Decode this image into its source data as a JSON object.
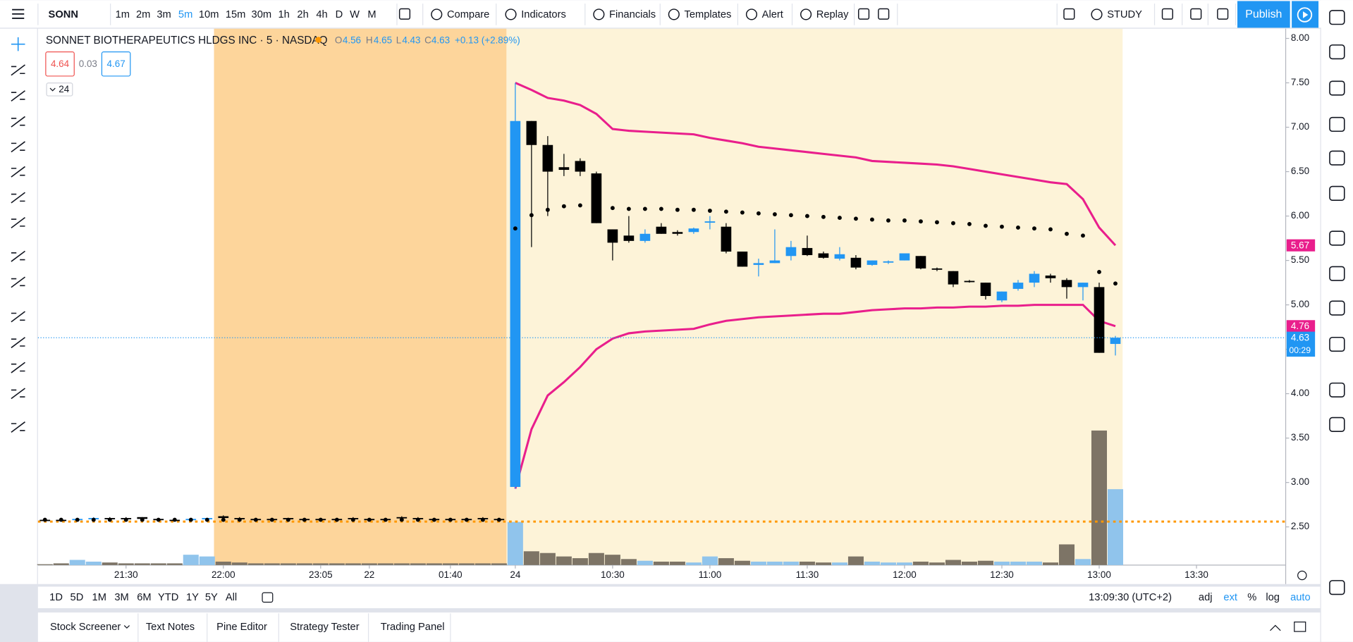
{
  "toolbar": {
    "symbol": "SONN",
    "intervals": [
      "1m",
      "2m",
      "3m",
      "5m",
      "10m",
      "15m",
      "30m",
      "1h",
      "2h",
      "4h",
      "D",
      "W",
      "M"
    ],
    "buttons": [
      "Compare",
      "Indicators",
      "Financials",
      "Templates",
      "Alert",
      "Replay",
      "STUDY"
    ],
    "publish": "Publish"
  },
  "chart_data": {
    "type": "candlestick",
    "title": "SONNET BIOTHERAPEUTICS HLDGS INC · 5 · NASDAQ",
    "legend": {
      "ohlc_labels": [
        "O",
        "H",
        "L",
        "C"
      ],
      "change": "+0.13 (+2.89%)"
    },
    "bid": 4.64,
    "spread": 0.03,
    "ask": 4.67,
    "collapse": 24,
    "countdown": "00:29",
    "x": [
      0,
      1,
      2,
      3,
      4,
      5,
      6,
      7,
      8,
      9,
      10,
      11,
      12,
      13,
      14,
      15,
      16,
      17,
      18,
      19,
      20,
      21,
      22,
      23,
      24,
      25,
      26,
      27,
      28,
      29,
      30,
      31,
      32,
      33,
      34,
      35,
      36,
      37,
      38,
      39,
      40,
      41,
      42,
      43,
      44,
      45,
      46,
      47,
      48,
      49,
      50,
      51,
      52,
      53,
      54,
      55,
      56,
      57,
      58,
      59,
      60,
      61,
      62,
      63,
      64,
      65,
      66
    ],
    "open": [
      2.58,
      2.58,
      2.58,
      2.59,
      2.6,
      2.6,
      2.61,
      2.59,
      2.58,
      2.58,
      2.59,
      2.62,
      2.6,
      2.59,
      2.59,
      2.6,
      2.59,
      2.59,
      2.59,
      2.6,
      2.59,
      2.59,
      2.61,
      2.6,
      2.59,
      2.59,
      2.59,
      2.6,
      2.59,
      2.95,
      7.07,
      6.8,
      6.55,
      6.62,
      6.48,
      5.85,
      5.78,
      5.72,
      5.88,
      5.82,
      5.82,
      5.93,
      5.88,
      5.6,
      5.45,
      5.47,
      5.55,
      5.64,
      5.58,
      5.52,
      5.53,
      5.45,
      5.48,
      5.5,
      5.55,
      5.41,
      5.38,
      5.27,
      5.25,
      5.05,
      5.18,
      5.25,
      5.33,
      5.28,
      5.2,
      5.2,
      4.56
    ],
    "high": [
      2.59,
      2.59,
      2.6,
      2.61,
      2.61,
      2.61,
      2.61,
      2.59,
      2.59,
      2.59,
      2.6,
      2.63,
      2.61,
      2.6,
      2.6,
      2.6,
      2.6,
      2.6,
      2.6,
      2.61,
      2.6,
      2.6,
      2.62,
      2.61,
      2.6,
      2.6,
      2.6,
      2.61,
      2.6,
      7.5,
      7.07,
      6.9,
      6.7,
      6.65,
      6.5,
      5.85,
      6.0,
      5.85,
      5.92,
      5.84,
      5.87,
      6.0,
      5.92,
      5.6,
      5.52,
      5.85,
      5.72,
      5.78,
      5.6,
      5.65,
      5.56,
      5.5,
      5.5,
      5.58,
      5.55,
      5.42,
      5.38,
      5.28,
      5.25,
      5.15,
      5.28,
      5.38,
      5.35,
      5.3,
      5.25,
      5.25,
      4.65
    ],
    "low": [
      2.57,
      2.57,
      2.57,
      2.58,
      2.59,
      2.59,
      2.59,
      2.57,
      2.57,
      2.57,
      2.58,
      2.59,
      2.58,
      2.58,
      2.58,
      2.59,
      2.58,
      2.58,
      2.58,
      2.59,
      2.58,
      2.58,
      2.59,
      2.59,
      2.58,
      2.58,
      2.58,
      2.59,
      2.58,
      2.93,
      5.65,
      6.0,
      6.45,
      6.45,
      5.92,
      5.5,
      5.7,
      5.7,
      5.8,
      5.78,
      5.8,
      5.85,
      5.58,
      5.43,
      5.32,
      5.47,
      5.5,
      5.55,
      5.52,
      5.5,
      5.4,
      5.44,
      5.46,
      5.5,
      5.4,
      5.38,
      5.2,
      5.25,
      5.06,
      5.03,
      5.16,
      5.2,
      5.25,
      5.07,
      5.05,
      4.46,
      4.43
    ],
    "close": [
      2.58,
      2.58,
      2.59,
      2.6,
      2.59,
      2.59,
      2.59,
      2.58,
      2.58,
      2.59,
      2.6,
      2.6,
      2.59,
      2.59,
      2.59,
      2.59,
      2.59,
      2.59,
      2.59,
      2.6,
      2.59,
      2.59,
      2.6,
      2.6,
      2.59,
      2.59,
      2.59,
      2.6,
      2.59,
      7.07,
      6.8,
      6.5,
      6.52,
      6.5,
      5.92,
      5.7,
      5.72,
      5.8,
      5.8,
      5.8,
      5.86,
      5.94,
      5.6,
      5.43,
      5.47,
      5.5,
      5.65,
      5.56,
      5.53,
      5.57,
      5.42,
      5.5,
      5.49,
      5.58,
      5.41,
      5.4,
      5.23,
      5.26,
      5.1,
      5.15,
      5.25,
      5.35,
      5.3,
      5.2,
      5.25,
      4.46,
      4.63
    ],
    "volume": [
      1,
      2,
      6,
      4,
      3,
      2,
      2,
      2,
      2,
      12,
      10,
      4,
      3,
      2,
      2,
      2,
      2,
      2,
      2,
      2,
      2,
      2,
      2,
      2,
      2,
      2,
      2,
      2,
      2,
      50,
      16,
      14,
      10,
      8,
      14,
      12,
      7,
      5,
      4,
      4,
      3,
      10,
      8,
      5,
      4,
      4,
      4,
      4,
      3,
      3,
      10,
      4,
      3,
      3,
      4,
      3,
      6,
      4,
      5,
      4,
      4,
      4,
      3,
      24,
      7,
      156,
      88
    ],
    "colors": {
      "up": "#2196f3",
      "down": "#000000"
    },
    "volume_colors": {
      "up": "#90c4ec",
      "down": "#7d7466"
    },
    "dots": {
      "color": "#000000",
      "values": [
        2.58,
        2.58,
        2.58,
        2.58,
        2.58,
        2.58,
        2.58,
        2.58,
        2.58,
        2.58,
        2.58,
        2.58,
        2.58,
        2.58,
        2.58,
        2.58,
        2.58,
        2.58,
        2.58,
        2.58,
        2.58,
        2.58,
        2.58,
        2.58,
        2.58,
        2.58,
        2.58,
        2.58,
        2.58,
        5.86,
        6.01,
        6.07,
        6.11,
        6.12,
        6.1,
        6.09,
        6.08,
        6.08,
        6.08,
        6.07,
        6.07,
        6.06,
        6.05,
        6.04,
        6.03,
        6.02,
        6.01,
        6.0,
        5.99,
        5.98,
        5.97,
        5.96,
        5.95,
        5.95,
        5.94,
        5.93,
        5.92,
        5.91,
        5.89,
        5.88,
        5.87,
        5.86,
        5.85,
        5.8,
        5.78,
        5.37,
        5.24
      ]
    },
    "upper_band": {
      "color": "#e91e8c",
      "values": [
        null,
        null,
        null,
        null,
        null,
        null,
        null,
        null,
        null,
        null,
        null,
        null,
        null,
        null,
        null,
        null,
        null,
        null,
        null,
        null,
        null,
        null,
        null,
        null,
        null,
        null,
        null,
        null,
        null,
        7.5,
        7.42,
        7.33,
        7.3,
        7.25,
        7.15,
        6.98,
        6.96,
        6.95,
        6.94,
        6.93,
        6.92,
        6.88,
        6.85,
        6.82,
        6.78,
        6.76,
        6.74,
        6.72,
        6.7,
        6.68,
        6.66,
        6.62,
        6.61,
        6.6,
        6.59,
        6.58,
        6.56,
        6.53,
        6.5,
        6.47,
        6.44,
        6.41,
        6.38,
        6.36,
        6.19,
        5.87,
        5.67
      ]
    },
    "lower_band": {
      "color": "#e91e8c",
      "values": [
        null,
        null,
        null,
        null,
        null,
        null,
        null,
        null,
        null,
        null,
        null,
        null,
        null,
        null,
        null,
        null,
        null,
        null,
        null,
        null,
        null,
        null,
        null,
        null,
        null,
        null,
        null,
        null,
        null,
        2.93,
        3.6,
        3.98,
        4.13,
        4.3,
        4.5,
        4.62,
        4.68,
        4.7,
        4.71,
        4.72,
        4.73,
        4.78,
        4.82,
        4.84,
        4.86,
        4.87,
        4.88,
        4.89,
        4.9,
        4.9,
        4.92,
        4.94,
        4.95,
        4.96,
        4.96,
        4.97,
        4.97,
        4.98,
        4.98,
        4.99,
        4.99,
        5.0,
        5.0,
        5.0,
        5.0,
        4.82,
        4.76
      ]
    },
    "hline": {
      "value": 2.56,
      "color": "#ff9800"
    },
    "last_price_color": "#2196f3",
    "ylim": [
      2.07,
      8.12
    ],
    "yticks": [
      {
        "value": 2.5,
        "label": "2.50"
      },
      {
        "value": 3,
        "label": "3.00"
      },
      {
        "value": 3.5,
        "label": "3.50"
      },
      {
        "value": 4,
        "label": "4.00"
      },
      {
        "value": 4.5,
        "label": "4.50"
      },
      {
        "value": 5,
        "label": "5.00"
      },
      {
        "value": 5.5,
        "label": "5.50"
      },
      {
        "value": 6,
        "label": "6.00"
      },
      {
        "value": 6.5,
        "label": "6.50"
      },
      {
        "value": 7,
        "label": "7.00"
      },
      {
        "value": 7.5,
        "label": "7.50"
      },
      {
        "value": 8,
        "label": "8.00"
      }
    ],
    "xlim": [
      -0.43,
      76.5
    ],
    "xticks": [
      {
        "value": 5,
        "label": "21:30"
      },
      {
        "value": 11,
        "label": "22:00"
      },
      {
        "value": 17,
        "label": "23:05"
      },
      {
        "value": 20,
        "label": "22"
      },
      {
        "value": 25,
        "label": "01:40"
      },
      {
        "value": 29,
        "label": "24"
      },
      {
        "value": 35,
        "label": "10:30"
      },
      {
        "value": 41,
        "label": "11:00"
      },
      {
        "value": 47,
        "label": "11:30"
      },
      {
        "value": 53,
        "label": "12:00"
      },
      {
        "value": 59,
        "label": "12:30"
      },
      {
        "value": 65,
        "label": "13:00"
      },
      {
        "value": 71,
        "label": "13:30"
      }
    ],
    "grid": false
  },
  "bottom": {
    "ranges": [
      "1D",
      "5D",
      "1M",
      "3M",
      "6M",
      "YTD",
      "1Y",
      "5Y",
      "All"
    ],
    "clock": "13:09:30 (UTC+2)",
    "scale_options": [
      "adj",
      "ext",
      "%",
      "log",
      "auto"
    ],
    "tabs": [
      "Stock Screener",
      "Text Notes",
      "Pine Editor",
      "Strategy Tester",
      "Trading Panel"
    ]
  }
}
